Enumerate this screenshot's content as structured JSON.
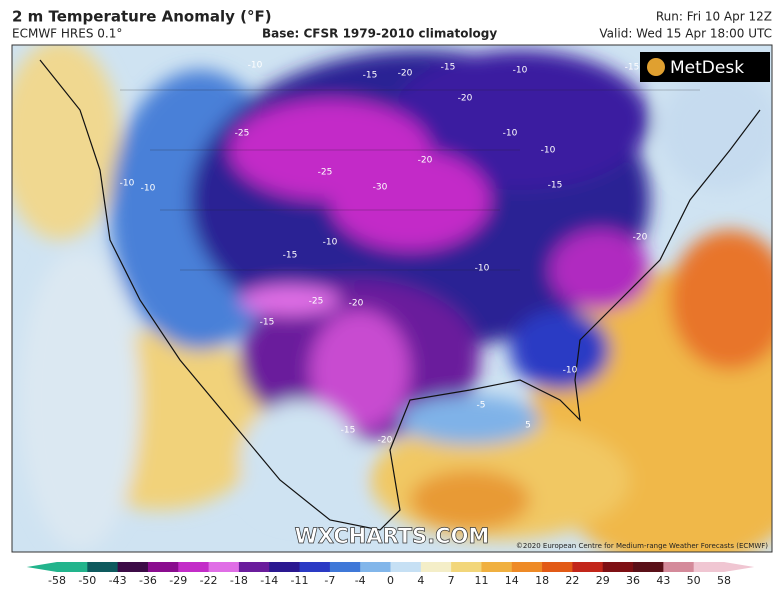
{
  "header": {
    "title": "2 m Temperature Anomaly (°F)",
    "model": "ECMWF HRES 0.1°",
    "base": "Base: CFSR 1979-2010 climatology",
    "run": "Run: Fri 10 Apr 12Z",
    "valid": "Valid: Wed 15 Apr 18:00 UTC"
  },
  "map": {
    "logo": "MetDesk",
    "watermark": "WXCHARTS.COM",
    "credit": "©2020 European Centre for Medium-range Weather Forecasts (ECMWF)",
    "contour_labels": [
      "-10",
      "-15",
      "-20",
      "-15",
      "-10",
      "-15",
      "-20",
      "-25",
      "-20",
      "-25",
      "-30",
      "-10",
      "-10",
      "-15",
      "-10",
      "-10",
      "-10",
      "-15",
      "-20",
      "-10",
      "-25",
      "-20",
      "-15",
      "-10",
      "-5",
      "-20",
      "-15",
      "5"
    ]
  },
  "colorbar": {
    "ticks": [
      "-58",
      "-50",
      "-43",
      "-36",
      "-29",
      "-22",
      "-18",
      "-14",
      "-11",
      "-7",
      "-4",
      "0",
      "4",
      "7",
      "11",
      "14",
      "18",
      "22",
      "29",
      "36",
      "43",
      "50",
      "58"
    ],
    "colors": [
      "#22b48c",
      "#0e5a5e",
      "#3c0b46",
      "#8a0c8e",
      "#c32cc8",
      "#e06ee6",
      "#6a1c9c",
      "#2a1890",
      "#2a3ac4",
      "#3f78d8",
      "#82b6ea",
      "#c6e0f4",
      "#f4eec8",
      "#f2d67a",
      "#f0b040",
      "#ee8a26",
      "#e25a16",
      "#c2261a",
      "#7e1014",
      "#5a1018",
      "#d48a9a",
      "#f0c6d2"
    ]
  }
}
